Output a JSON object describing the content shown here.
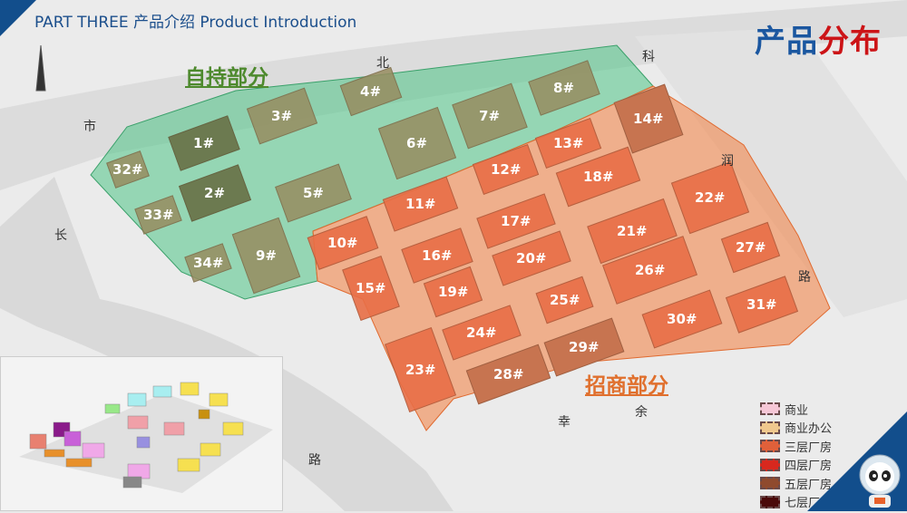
{
  "header": {
    "title": "PART THREE 产品介绍 Product Introduction",
    "headline_blue": "产品",
    "headline_red": "分布"
  },
  "zones": {
    "self_held": "自持部分",
    "leasing": "招商部分"
  },
  "roads": [
    "北",
    "科",
    "润",
    "路",
    "市",
    "长",
    "余",
    "幸",
    "路"
  ],
  "buildings": {
    "self_held": [
      "1#",
      "2#",
      "3#",
      "4#",
      "5#",
      "6#",
      "7#",
      "8#",
      "9#",
      "32#",
      "33#",
      "34#"
    ],
    "leasing": [
      "10#",
      "11#",
      "12#",
      "13#",
      "14#",
      "15#",
      "16#",
      "17#",
      "18#",
      "19#",
      "20#",
      "21#",
      "22#",
      "23#",
      "24#",
      "25#",
      "26#",
      "27#",
      "28#",
      "29#",
      "30#",
      "31#"
    ]
  },
  "legend": [
    {
      "label": "商业",
      "color": "#f6c7d6"
    },
    {
      "label": "商业办公",
      "color": "#f0c88e"
    },
    {
      "label": "三层厂房",
      "color": "#e0603a"
    },
    {
      "label": "四层厂房",
      "color": "#d8281e"
    },
    {
      "label": "五层厂房",
      "color": "#8f4a2e"
    },
    {
      "label": "七层厂房",
      "color": "#4a0a0a"
    }
  ],
  "colors": {
    "self_held_zone": "#4fc486",
    "leasing_zone": "#f2874d",
    "brand_blue": "#124e8c",
    "brand_red": "#cc1417",
    "self_held_text": "#4e8a2e",
    "leasing_text": "#e0702e"
  }
}
